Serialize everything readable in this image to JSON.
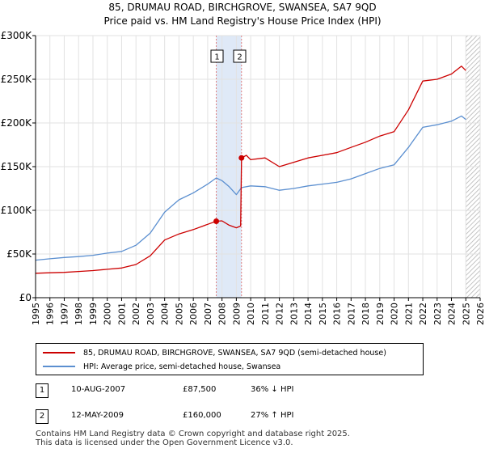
{
  "title_line1": "85, DRUMAU ROAD, BIRCHGROVE, SWANSEA, SA7 9QD",
  "title_line2": "Price paid vs. HM Land Registry's House Price Index (HPI)",
  "colors": {
    "property": "#cc0000",
    "hpi": "#5b8fd0",
    "band": "#dfe9f7",
    "marker_line": "#e08080"
  },
  "chart_data": {
    "type": "line",
    "xlim": [
      1995,
      2026
    ],
    "ylim": [
      0,
      300000
    ],
    "y_ticks": [
      0,
      50000,
      100000,
      150000,
      200000,
      250000,
      300000
    ],
    "y_tick_labels": [
      "£0",
      "£50K",
      "£100K",
      "£150K",
      "£200K",
      "£250K",
      "£300K"
    ],
    "x_ticks": [
      1995,
      1996,
      1997,
      1998,
      1999,
      2000,
      2001,
      2002,
      2003,
      2004,
      2005,
      2006,
      2007,
      2008,
      2009,
      2010,
      2011,
      2012,
      2013,
      2014,
      2015,
      2016,
      2017,
      2018,
      2019,
      2020,
      2021,
      2022,
      2023,
      2024,
      2025,
      2026
    ],
    "x_tick_labels": [
      "1995",
      "1996",
      "1997",
      "1998",
      "1999",
      "2000",
      "2001",
      "2002",
      "2003",
      "2004",
      "2005",
      "2006",
      "2007",
      "2008",
      "2009",
      "2010",
      "2011",
      "2012",
      "2013",
      "2014",
      "2015",
      "2016",
      "2017",
      "2018",
      "2019",
      "2020",
      "2021",
      "2022",
      "2023",
      "2024",
      "2025",
      "2026"
    ],
    "grid": true,
    "shaded_band": [
      2007.6,
      2009.36
    ],
    "hatch_from": 2025.0,
    "series": [
      {
        "name": "85, DRUMAU ROAD, BIRCHGROVE, SWANSEA, SA7 9QD (semi-detached house)",
        "color": "#cc0000",
        "points": [
          [
            1995,
            28000
          ],
          [
            1996,
            28500
          ],
          [
            1997,
            29000
          ],
          [
            1998,
            30000
          ],
          [
            1999,
            31000
          ],
          [
            2000,
            32500
          ],
          [
            2001,
            34000
          ],
          [
            2002,
            38000
          ],
          [
            2003,
            48000
          ],
          [
            2004,
            66000
          ],
          [
            2005,
            73000
          ],
          [
            2006,
            78000
          ],
          [
            2007,
            84000
          ],
          [
            2007.6,
            87500
          ],
          [
            2008,
            88000
          ],
          [
            2008.5,
            83000
          ],
          [
            2009,
            80000
          ],
          [
            2009.3,
            82000
          ],
          [
            2009.36,
            160000
          ],
          [
            2009.7,
            163000
          ],
          [
            2010,
            158000
          ],
          [
            2011,
            160000
          ],
          [
            2012,
            150000
          ],
          [
            2013,
            155000
          ],
          [
            2014,
            160000
          ],
          [
            2015,
            163000
          ],
          [
            2016,
            166000
          ],
          [
            2017,
            172000
          ],
          [
            2018,
            178000
          ],
          [
            2019,
            185000
          ],
          [
            2020,
            190000
          ],
          [
            2021,
            215000
          ],
          [
            2022,
            248000
          ],
          [
            2023,
            250000
          ],
          [
            2024,
            256000
          ],
          [
            2024.7,
            265000
          ],
          [
            2025.0,
            260000
          ]
        ]
      },
      {
        "name": "HPI: Average price, semi-detached house, Swansea",
        "color": "#5b8fd0",
        "points": [
          [
            1995,
            43000
          ],
          [
            1996,
            44500
          ],
          [
            1997,
            46000
          ],
          [
            1998,
            47000
          ],
          [
            1999,
            48500
          ],
          [
            2000,
            51000
          ],
          [
            2001,
            53000
          ],
          [
            2002,
            60000
          ],
          [
            2003,
            74000
          ],
          [
            2004,
            98000
          ],
          [
            2005,
            112000
          ],
          [
            2006,
            120000
          ],
          [
            2007,
            130000
          ],
          [
            2007.6,
            137000
          ],
          [
            2008,
            134000
          ],
          [
            2008.5,
            127000
          ],
          [
            2009,
            118000
          ],
          [
            2009.36,
            126000
          ],
          [
            2010,
            128000
          ],
          [
            2011,
            127000
          ],
          [
            2012,
            123000
          ],
          [
            2013,
            125000
          ],
          [
            2014,
            128000
          ],
          [
            2015,
            130000
          ],
          [
            2016,
            132000
          ],
          [
            2017,
            136000
          ],
          [
            2018,
            142000
          ],
          [
            2019,
            148000
          ],
          [
            2020,
            152000
          ],
          [
            2021,
            172000
          ],
          [
            2022,
            195000
          ],
          [
            2023,
            198000
          ],
          [
            2024,
            202000
          ],
          [
            2024.7,
            208000
          ],
          [
            2025.0,
            204000
          ]
        ]
      }
    ],
    "sales": [
      {
        "label": "1",
        "x": 2007.6,
        "y": 87500
      },
      {
        "label": "2",
        "x": 2009.36,
        "y": 160000
      }
    ]
  },
  "legend": {
    "property_label": "85, DRUMAU ROAD, BIRCHGROVE, SWANSEA, SA7 9QD (semi-detached house)",
    "hpi_label": "HPI: Average price, semi-detached house, Swansea"
  },
  "sales_table": [
    {
      "num": "1",
      "date": "10-AUG-2007",
      "price": "£87,500",
      "hpi": "36% ↓ HPI"
    },
    {
      "num": "2",
      "date": "12-MAY-2009",
      "price": "£160,000",
      "hpi": "27% ↑ HPI"
    }
  ],
  "footer_line1": "Contains HM Land Registry data © Crown copyright and database right 2025.",
  "footer_line2": "This data is licensed under the Open Government Licence v3.0."
}
